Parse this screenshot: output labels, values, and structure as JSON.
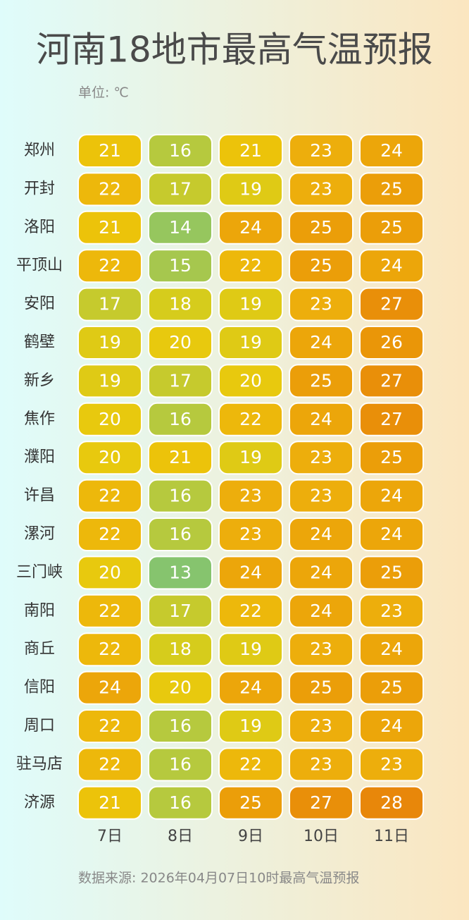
{
  "chart_data": {
    "type": "heatmap",
    "title": "河南18地市最高气温预报",
    "subtitle": "单位: ℃",
    "source": "数据来源: 2026年04月07日10时最高气温预报",
    "rows": [
      "郑州",
      "开封",
      "洛阳",
      "平顶山",
      "安阳",
      "鹤壁",
      "新乡",
      "焦作",
      "濮阳",
      "许昌",
      "漯河",
      "三门峡",
      "南阳",
      "商丘",
      "信阳",
      "周口",
      "驻马店",
      "济源"
    ],
    "columns": [
      "7日",
      "8日",
      "9日",
      "10日",
      "11日"
    ],
    "values": [
      [
        21,
        16,
        21,
        23,
        24
      ],
      [
        22,
        17,
        19,
        23,
        25
      ],
      [
        21,
        14,
        24,
        25,
        25
      ],
      [
        22,
        15,
        22,
        25,
        24
      ],
      [
        17,
        18,
        19,
        23,
        27
      ],
      [
        19,
        20,
        19,
        24,
        26
      ],
      [
        19,
        17,
        20,
        25,
        27
      ],
      [
        20,
        16,
        22,
        24,
        27
      ],
      [
        20,
        21,
        19,
        23,
        25
      ],
      [
        22,
        16,
        23,
        23,
        24
      ],
      [
        22,
        16,
        23,
        24,
        24
      ],
      [
        20,
        13,
        24,
        24,
        25
      ],
      [
        22,
        17,
        22,
        24,
        23
      ],
      [
        22,
        18,
        19,
        23,
        24
      ],
      [
        24,
        20,
        24,
        25,
        25
      ],
      [
        22,
        16,
        19,
        23,
        24
      ],
      [
        22,
        16,
        22,
        23,
        23
      ],
      [
        21,
        16,
        25,
        27,
        28
      ]
    ],
    "colors": [
      "#86c46e",
      "#aec846",
      "#d6cc1c",
      "#ecc80a",
      "#edae0c",
      "#eb9a08",
      "#e8870a"
    ]
  }
}
